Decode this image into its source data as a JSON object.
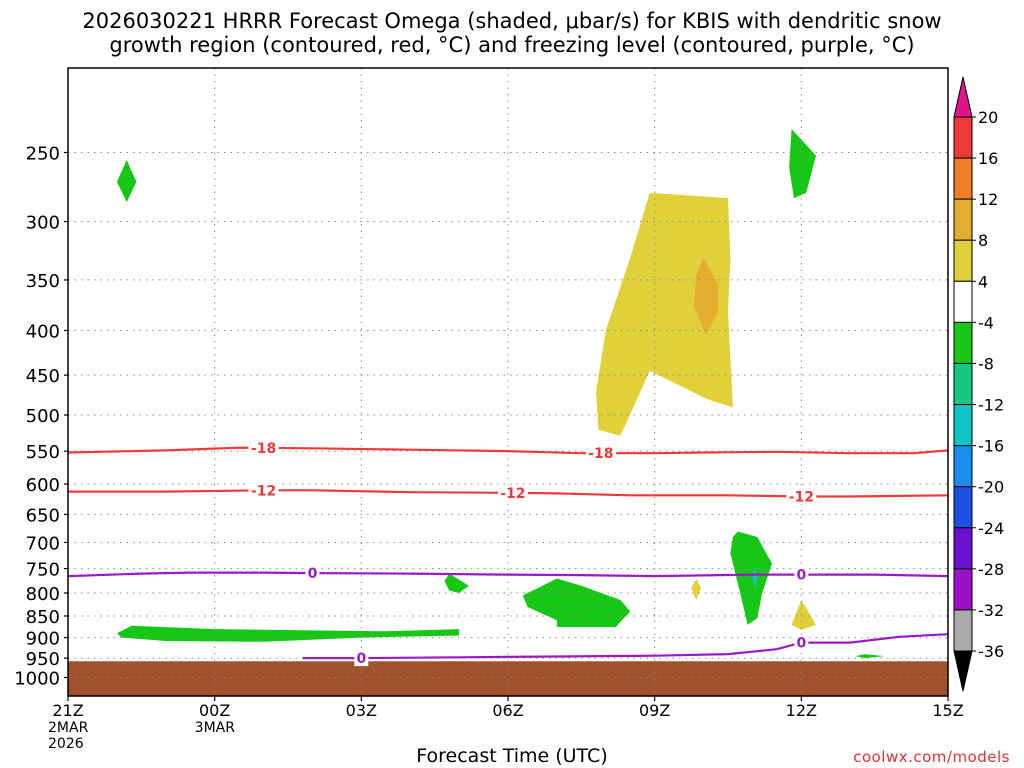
{
  "title_line1": "2026030221 HRRR Forecast Omega (shaded, μbar/s) for KBIS with dendritic snow",
  "title_line2": "growth region (contoured, red, °C) and freezing level (contoured, purple, °C)",
  "xlabel": "Forecast Time (UTC)",
  "credit": "coolwx.com/models",
  "chart_data": {
    "type": "heatmap",
    "title": "2026030221 HRRR Forecast Omega (shaded, μbar/s) for KBIS with dendritic snow growth region (contoured, red, °C) and freezing level (contoured, purple, °C)",
    "xlabel": "Forecast Time (UTC)",
    "ylabel": "",
    "x_range_hours": [
      0,
      18
    ],
    "y_range_hPa": [
      200,
      1050
    ],
    "y_scale": "log",
    "grid": true,
    "x_ticks": [
      {
        "hour": 0,
        "lines": [
          "21Z",
          "2MAR",
          "2026"
        ]
      },
      {
        "hour": 3,
        "lines": [
          "00Z",
          "3MAR"
        ]
      },
      {
        "hour": 6,
        "lines": [
          "03Z"
        ]
      },
      {
        "hour": 9,
        "lines": [
          "06Z"
        ]
      },
      {
        "hour": 12,
        "lines": [
          "09Z"
        ]
      },
      {
        "hour": 15,
        "lines": [
          "12Z"
        ]
      },
      {
        "hour": 18,
        "lines": [
          "15Z"
        ]
      }
    ],
    "y_ticks": [
      250,
      300,
      350,
      400,
      450,
      500,
      550,
      600,
      650,
      700,
      750,
      800,
      850,
      900,
      950,
      1000
    ],
    "colorbar": {
      "labels": [
        "20",
        "16",
        "12",
        "8",
        "4",
        "-4",
        "-8",
        "-12",
        "-16",
        "-20",
        "-24",
        "-28",
        "-32",
        "-36"
      ],
      "colors": [
        "#ef3a3a",
        "#ef7f27",
        "#e3ad2f",
        "#e0d03a",
        "#ffffff",
        "#16c815",
        "#17c884",
        "#10c3c4",
        "#1a8cf0",
        "#1d4fe3",
        "#6a10d0",
        "#9e0fc8",
        "#aaaaaa"
      ],
      "top_arrow_color": "#e0148a",
      "bottom_arrow_color": "#000000"
    },
    "omega_regions": [
      {
        "color": "#e0d03a",
        "points": [
          [
            11.9,
            278
          ],
          [
            13.5,
            282
          ],
          [
            13.55,
            330
          ],
          [
            13.5,
            380
          ],
          [
            13.6,
            490
          ],
          [
            13.1,
            480
          ],
          [
            11.9,
            445
          ],
          [
            11.3,
            528
          ],
          [
            10.85,
            520
          ],
          [
            10.8,
            470
          ],
          [
            11.0,
            400
          ],
          [
            11.5,
            330
          ]
        ]
      },
      {
        "color": "#e3ad2f",
        "points": [
          [
            13.0,
            330
          ],
          [
            13.3,
            355
          ],
          [
            13.3,
            380
          ],
          [
            13.05,
            405
          ],
          [
            12.8,
            375
          ],
          [
            12.85,
            345
          ]
        ]
      },
      {
        "color": "#16c815",
        "points": [
          [
            1.2,
            255
          ],
          [
            1.4,
            270
          ],
          [
            1.2,
            285
          ],
          [
            1.0,
            270
          ]
        ]
      },
      {
        "color": "#16c815",
        "points": [
          [
            14.8,
            235
          ],
          [
            15.3,
            252
          ],
          [
            15.1,
            278
          ],
          [
            14.85,
            282
          ],
          [
            14.75,
            260
          ]
        ]
      },
      {
        "color": "#16c815",
        "points": [
          [
            1.3,
            872
          ],
          [
            3.0,
            880
          ],
          [
            6.5,
            885
          ],
          [
            8.0,
            880
          ],
          [
            8.0,
            895
          ],
          [
            6.0,
            900
          ],
          [
            4.0,
            910
          ],
          [
            2.0,
            908
          ],
          [
            1.1,
            900
          ],
          [
            1.0,
            890
          ]
        ]
      },
      {
        "color": "#16c815",
        "points": [
          [
            7.8,
            760
          ],
          [
            8.2,
            785
          ],
          [
            8.0,
            800
          ],
          [
            7.8,
            795
          ],
          [
            7.7,
            775
          ]
        ]
      },
      {
        "color": "#16c815",
        "points": [
          [
            9.6,
            790
          ],
          [
            10.0,
            770
          ],
          [
            10.5,
            785
          ],
          [
            11.3,
            815
          ],
          [
            11.5,
            840
          ],
          [
            11.2,
            875
          ],
          [
            10.0,
            875
          ],
          [
            10.0,
            860
          ],
          [
            9.4,
            830
          ],
          [
            9.3,
            805
          ]
        ]
      },
      {
        "color": "#16c815",
        "points": [
          [
            13.7,
            680
          ],
          [
            14.1,
            690
          ],
          [
            14.4,
            740
          ],
          [
            14.2,
            800
          ],
          [
            14.1,
            855
          ],
          [
            13.9,
            870
          ],
          [
            13.75,
            800
          ],
          [
            13.55,
            720
          ],
          [
            13.6,
            690
          ]
        ]
      },
      {
        "color": "#10c3c4",
        "points": [
          [
            14.05,
            745
          ],
          [
            14.1,
            770
          ],
          [
            14.05,
            790
          ],
          [
            14.0,
            770
          ]
        ]
      },
      {
        "color": "#e0d03a",
        "points": [
          [
            12.85,
            770
          ],
          [
            12.95,
            790
          ],
          [
            12.85,
            815
          ],
          [
            12.75,
            790
          ]
        ]
      },
      {
        "color": "#e0d03a",
        "points": [
          [
            15.0,
            815
          ],
          [
            15.3,
            870
          ],
          [
            15.0,
            882
          ],
          [
            14.8,
            870
          ]
        ]
      },
      {
        "color": "#16c815",
        "points": [
          [
            16.3,
            940
          ],
          [
            16.7,
            945
          ],
          [
            16.3,
            950
          ],
          [
            16.1,
            945
          ]
        ]
      }
    ],
    "terrain": {
      "color": "#a0522d",
      "top_hPa": 958
    },
    "red_contours": [
      {
        "label": "-18",
        "color": "#ef3a3a",
        "points": [
          [
            0,
            552
          ],
          [
            2.0,
            549
          ],
          [
            3.5,
            545
          ],
          [
            5.0,
            546
          ],
          [
            7.0,
            548
          ],
          [
            9.0,
            550
          ],
          [
            10.5,
            553
          ],
          [
            12.0,
            553
          ],
          [
            13.0,
            552
          ],
          [
            14.5,
            551
          ],
          [
            16.0,
            553
          ],
          [
            17.3,
            553
          ],
          [
            18,
            549
          ]
        ],
        "label_positions": [
          4.0,
          10.9
        ]
      },
      {
        "label": "-12",
        "color": "#ef3a3a",
        "points": [
          [
            0,
            612
          ],
          [
            2.0,
            612
          ],
          [
            4.0,
            610
          ],
          [
            5.0,
            610
          ],
          [
            7.0,
            613
          ],
          [
            9.0,
            614
          ],
          [
            10.0,
            615
          ],
          [
            11.5,
            618
          ],
          [
            13.5,
            618
          ],
          [
            15.0,
            620
          ],
          [
            16.0,
            620
          ],
          [
            18,
            618
          ]
        ],
        "label_positions": [
          4.0,
          9.1,
          15.0
        ]
      },
      {
        "label": "0",
        "color": "#9b1ac8",
        "points": [
          [
            0,
            765
          ],
          [
            1.5,
            760
          ],
          [
            2.5,
            758
          ],
          [
            4.0,
            758
          ],
          [
            5.0,
            759
          ],
          [
            7.0,
            760
          ],
          [
            9.0,
            762
          ],
          [
            10.5,
            763
          ],
          [
            12.0,
            765
          ],
          [
            14.0,
            762
          ],
          [
            15.5,
            762
          ],
          [
            16.5,
            762
          ],
          [
            18,
            765
          ]
        ],
        "label_positions": [
          5.0,
          15.0
        ]
      },
      {
        "label": "0",
        "color": "#9b1ac8",
        "points": [
          [
            4.8,
            950
          ],
          [
            6.0,
            950
          ],
          [
            8.0,
            948
          ],
          [
            10.0,
            946
          ],
          [
            12.0,
            944
          ],
          [
            13.5,
            940
          ],
          [
            14.5,
            928
          ],
          [
            15.0,
            912
          ],
          [
            16.0,
            912
          ],
          [
            17.0,
            898
          ],
          [
            18,
            892
          ]
        ],
        "label_positions": [
          6.0,
          15.0
        ]
      }
    ]
  }
}
